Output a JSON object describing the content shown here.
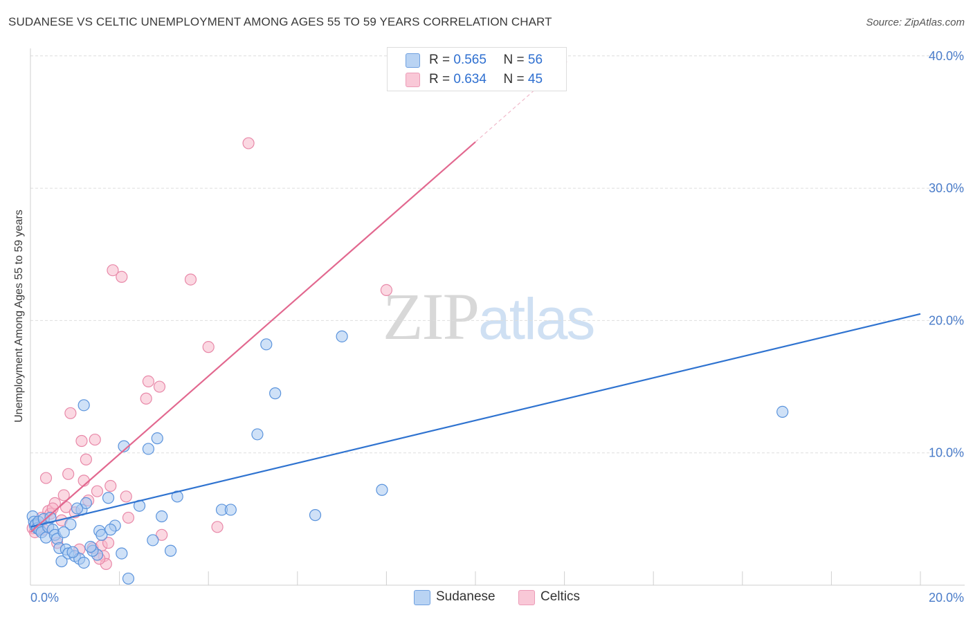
{
  "title": "SUDANESE VS CELTIC UNEMPLOYMENT AMONG AGES 55 TO 59 YEARS CORRELATION CHART",
  "source": "Source: ZipAtlas.com",
  "watermark": {
    "zip": "ZIP",
    "atlas": "atlas"
  },
  "colors": {
    "sudanese_fill": "#a8c8f0",
    "sudanese_stroke": "#5a93dc",
    "sudanese_line": "#2f73d0",
    "celtics_fill": "#f7b8cb",
    "celtics_stroke": "#e888a8",
    "celtics_line": "#e2688f",
    "tick_text": "#4a7cc9",
    "grid": "#dddddd"
  },
  "legend": {
    "rows": [
      {
        "r_label": "R =",
        "r_value": "0.565",
        "n_label": "N =",
        "n_value": "56"
      },
      {
        "r_label": "R =",
        "r_value": "0.634",
        "n_label": "N =",
        "n_value": "45"
      }
    ],
    "bottom": [
      "Sudanese",
      "Celtics"
    ]
  },
  "chart_data": {
    "type": "scatter",
    "title": "SUDANESE VS CELTIC UNEMPLOYMENT AMONG AGES 55 TO 59 YEARS CORRELATION CHART",
    "xlabel": "",
    "ylabel": "Unemployment Among Ages 55 to 59 years",
    "xlim": [
      0,
      20
    ],
    "ylim": [
      0,
      42
    ],
    "x_tick_labels": [
      "0.0%",
      "20.0%"
    ],
    "y_ticks": [
      10,
      20,
      30,
      40
    ],
    "y_tick_labels": [
      "10.0%",
      "20.0%",
      "30.0%",
      "40.0%"
    ],
    "grid": true,
    "series": [
      {
        "name": "Sudanese",
        "r": 0.565,
        "n": 56,
        "trend": {
          "x": [
            0,
            20
          ],
          "y": [
            4.4,
            20.5
          ]
        },
        "points": [
          {
            "x": 0.05,
            "y": 5.2
          },
          {
            "x": 0.08,
            "y": 4.8
          },
          {
            "x": 0.1,
            "y": 4.5
          },
          {
            "x": 0.12,
            "y": 4.6
          },
          {
            "x": 0.15,
            "y": 4.3
          },
          {
            "x": 0.18,
            "y": 4.8
          },
          {
            "x": 0.2,
            "y": 4.2
          },
          {
            "x": 0.25,
            "y": 4.0
          },
          {
            "x": 0.3,
            "y": 5.0
          },
          {
            "x": 0.35,
            "y": 3.6
          },
          {
            "x": 0.4,
            "y": 4.4
          },
          {
            "x": 0.45,
            "y": 5.1
          },
          {
            "x": 0.5,
            "y": 4.2
          },
          {
            "x": 0.55,
            "y": 3.8
          },
          {
            "x": 0.6,
            "y": 3.5
          },
          {
            "x": 0.65,
            "y": 2.8
          },
          {
            "x": 0.7,
            "y": 1.8
          },
          {
            "x": 0.8,
            "y": 2.7
          },
          {
            "x": 0.85,
            "y": 2.4
          },
          {
            "x": 0.9,
            "y": 4.6
          },
          {
            "x": 1.0,
            "y": 2.2
          },
          {
            "x": 1.1,
            "y": 2.0
          },
          {
            "x": 1.15,
            "y": 5.7
          },
          {
            "x": 1.2,
            "y": 1.7
          },
          {
            "x": 1.25,
            "y": 6.2
          },
          {
            "x": 1.5,
            "y": 2.3
          },
          {
            "x": 1.55,
            "y": 4.1
          },
          {
            "x": 1.75,
            "y": 6.6
          },
          {
            "x": 1.9,
            "y": 4.5
          },
          {
            "x": 2.05,
            "y": 2.4
          },
          {
            "x": 2.2,
            "y": 0.5
          },
          {
            "x": 2.45,
            "y": 6.0
          },
          {
            "x": 2.65,
            "y": 10.3
          },
          {
            "x": 2.75,
            "y": 3.4
          },
          {
            "x": 2.85,
            "y": 11.1
          },
          {
            "x": 2.95,
            "y": 5.2
          },
          {
            "x": 3.15,
            "y": 2.6
          },
          {
            "x": 3.3,
            "y": 6.7
          },
          {
            "x": 1.2,
            "y": 13.6
          },
          {
            "x": 2.1,
            "y": 10.5
          },
          {
            "x": 4.3,
            "y": 5.7
          },
          {
            "x": 4.5,
            "y": 5.7
          },
          {
            "x": 5.1,
            "y": 11.4
          },
          {
            "x": 5.3,
            "y": 18.2
          },
          {
            "x": 5.5,
            "y": 14.5
          },
          {
            "x": 6.4,
            "y": 5.3
          },
          {
            "x": 7.0,
            "y": 18.8
          },
          {
            "x": 7.9,
            "y": 7.2
          },
          {
            "x": 16.9,
            "y": 13.1
          },
          {
            "x": 1.4,
            "y": 2.6
          },
          {
            "x": 1.6,
            "y": 3.8
          },
          {
            "x": 0.95,
            "y": 2.5
          },
          {
            "x": 1.35,
            "y": 2.9
          },
          {
            "x": 0.75,
            "y": 4.0
          },
          {
            "x": 1.05,
            "y": 5.8
          },
          {
            "x": 1.8,
            "y": 4.2
          }
        ]
      },
      {
        "name": "Celtics",
        "r": 0.634,
        "n": 45,
        "trend": {
          "x": [
            0,
            10
          ],
          "y": [
            4.0,
            33.5
          ]
        },
        "points": [
          {
            "x": 0.05,
            "y": 4.3
          },
          {
            "x": 0.1,
            "y": 4.0
          },
          {
            "x": 0.15,
            "y": 4.6
          },
          {
            "x": 0.2,
            "y": 4.4
          },
          {
            "x": 0.25,
            "y": 5.1
          },
          {
            "x": 0.3,
            "y": 4.2
          },
          {
            "x": 0.35,
            "y": 8.1
          },
          {
            "x": 0.4,
            "y": 5.6
          },
          {
            "x": 0.45,
            "y": 5.4
          },
          {
            "x": 0.55,
            "y": 6.2
          },
          {
            "x": 0.6,
            "y": 3.2
          },
          {
            "x": 0.7,
            "y": 4.9
          },
          {
            "x": 0.75,
            "y": 6.8
          },
          {
            "x": 0.8,
            "y": 5.9
          },
          {
            "x": 0.85,
            "y": 8.4
          },
          {
            "x": 0.9,
            "y": 13.0
          },
          {
            "x": 1.0,
            "y": 5.5
          },
          {
            "x": 1.1,
            "y": 2.7
          },
          {
            "x": 1.15,
            "y": 10.9
          },
          {
            "x": 1.2,
            "y": 7.9
          },
          {
            "x": 1.25,
            "y": 9.5
          },
          {
            "x": 1.3,
            "y": 6.4
          },
          {
            "x": 1.4,
            "y": 2.8
          },
          {
            "x": 1.45,
            "y": 11.0
          },
          {
            "x": 1.5,
            "y": 7.1
          },
          {
            "x": 1.6,
            "y": 3.0
          },
          {
            "x": 1.65,
            "y": 2.2
          },
          {
            "x": 1.7,
            "y": 1.6
          },
          {
            "x": 1.75,
            "y": 3.2
          },
          {
            "x": 1.8,
            "y": 7.5
          },
          {
            "x": 1.85,
            "y": 23.8
          },
          {
            "x": 2.05,
            "y": 23.3
          },
          {
            "x": 2.15,
            "y": 6.7
          },
          {
            "x": 2.2,
            "y": 5.1
          },
          {
            "x": 2.6,
            "y": 14.1
          },
          {
            "x": 2.65,
            "y": 15.4
          },
          {
            "x": 2.9,
            "y": 15.0
          },
          {
            "x": 2.95,
            "y": 3.8
          },
          {
            "x": 3.6,
            "y": 23.1
          },
          {
            "x": 4.0,
            "y": 18.0
          },
          {
            "x": 4.2,
            "y": 4.4
          },
          {
            "x": 4.9,
            "y": 33.4
          },
          {
            "x": 8.0,
            "y": 22.3
          },
          {
            "x": 0.5,
            "y": 5.8
          },
          {
            "x": 1.55,
            "y": 2.0
          }
        ]
      }
    ]
  }
}
